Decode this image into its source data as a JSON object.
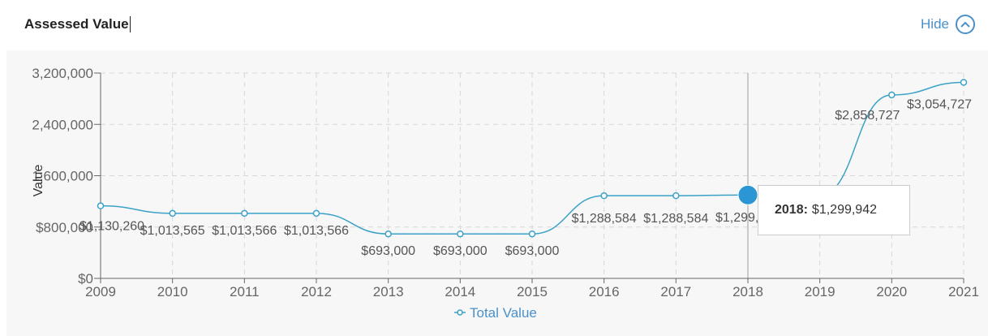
{
  "header": {
    "title": "Assessed Value",
    "hide_label": "Hide"
  },
  "icons": {
    "hide": "chevron-up-circle-icon"
  },
  "colors": {
    "series": "#3ba1c7",
    "highlight": "#2b96d3",
    "grid": "#d7d7d7",
    "accent": "#4a90c9"
  },
  "chart_data": {
    "type": "line",
    "ylabel": "Value",
    "ylim": [
      0,
      3200000
    ],
    "yticks": [
      {
        "value": 0,
        "label": "$0"
      },
      {
        "value": 800000,
        "label": "$800,000"
      },
      {
        "value": 1600000,
        "label": "1,600,000"
      },
      {
        "value": 2400000,
        "label": "2,400,000"
      },
      {
        "value": 3200000,
        "label": "3,200,000"
      }
    ],
    "x": [
      "2009",
      "2010",
      "2011",
      "2012",
      "2013",
      "2014",
      "2015",
      "2016",
      "2017",
      "2018",
      "2019",
      "2020",
      "2021"
    ],
    "series": [
      {
        "name": "Total Value",
        "values": [
          1130260,
          1013565,
          1013566,
          1013566,
          693000,
          693000,
          693000,
          1288584,
          1288584,
          1299942,
          1299942,
          2858727,
          3054727
        ],
        "labels": [
          "$1,130,260",
          "$1,013,565",
          "$1,013,566",
          "$1,013,566",
          "$693,000",
          "$693,000",
          "$693,000",
          "$1,288,584",
          "$1,288,584",
          "$1,299,942",
          "",
          "$2,858,727",
          "$3,054,727"
        ]
      }
    ],
    "grid": true,
    "legend": "bottom-center",
    "tooltip": {
      "year": "2018:",
      "value": "$1,299,942"
    }
  }
}
